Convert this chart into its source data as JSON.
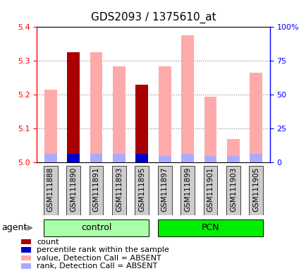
{
  "title": "GDS2093 / 1375610_at",
  "samples": [
    "GSM111888",
    "GSM111890",
    "GSM111891",
    "GSM111893",
    "GSM111895",
    "GSM111897",
    "GSM111899",
    "GSM111901",
    "GSM111903",
    "GSM111905"
  ],
  "groups": [
    {
      "name": "control",
      "indices": [
        0,
        1,
        2,
        3,
        4
      ],
      "color": "#aaffaa"
    },
    {
      "name": "PCN",
      "indices": [
        5,
        6,
        7,
        8,
        9
      ],
      "color": "#00ee00"
    }
  ],
  "ylim_left": [
    5.0,
    5.4
  ],
  "ylim_right": [
    0,
    100
  ],
  "yticks_left": [
    5.0,
    5.1,
    5.2,
    5.3,
    5.4
  ],
  "yticks_right": [
    0,
    25,
    50,
    75,
    100
  ],
  "ytick_labels_right": [
    "0",
    "25",
    "50",
    "75",
    "100%"
  ],
  "pink_values": [
    5.215,
    5.325,
    5.325,
    5.285,
    5.04,
    5.285,
    5.375,
    5.195,
    5.07,
    5.265
  ],
  "lblue_values": [
    5.025,
    5.025,
    5.025,
    5.025,
    5.025,
    5.02,
    5.025,
    5.02,
    5.02,
    5.025
  ],
  "red_values": [
    0.0,
    5.325,
    0.0,
    0.0,
    5.23,
    0.0,
    0.0,
    0.0,
    0.0,
    0.0
  ],
  "blue_values": [
    0.0,
    5.025,
    0.0,
    0.0,
    5.025,
    0.0,
    0.0,
    0.0,
    0.0,
    0.0
  ],
  "color_pink": "#ffaaaa",
  "color_lblue": "#aaaaff",
  "color_red": "#aa0000",
  "color_blue": "#0000cc",
  "color_gray_bg": "#cccccc",
  "bar_width": 0.55,
  "base_value": 5.0,
  "agent_label": "agent",
  "legend_items": [
    {
      "color": "#aa0000",
      "label": "count"
    },
    {
      "color": "#0000cc",
      "label": "percentile rank within the sample"
    },
    {
      "color": "#ffaaaa",
      "label": "value, Detection Call = ABSENT"
    },
    {
      "color": "#aaaaff",
      "label": "rank, Detection Call = ABSENT"
    }
  ]
}
